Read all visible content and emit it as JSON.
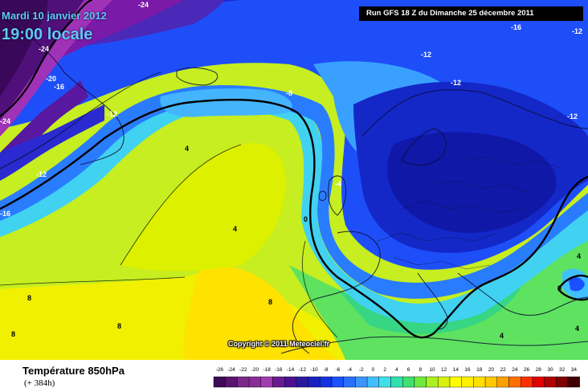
{
  "header": {
    "date": "Mardi 10 janvier 2012",
    "time": "19:00 locale",
    "run": "Run GFS 18 Z du Dimanche 25 décembre 2011"
  },
  "copyright": "Copyright © 2011 Meteociel.fr",
  "legend": {
    "title": "Température 850hPa",
    "subtitle": "(+ 384h)",
    "ticks": [
      "-26",
      "-24",
      "-22",
      "-20",
      "-18",
      "-16",
      "-14",
      "-12",
      "-10",
      "-8",
      "-6",
      "-4",
      "-2",
      "0",
      "2",
      "4",
      "6",
      "8",
      "10",
      "12",
      "14",
      "16",
      "18",
      "20",
      "22",
      "24",
      "26",
      "28",
      "30",
      "32",
      "34"
    ],
    "colors": [
      "#3d0a55",
      "#5a1470",
      "#7a2a8a",
      "#8a2c98",
      "#a03cb0",
      "#6a1a90",
      "#4a1290",
      "#2a18a0",
      "#1a20c0",
      "#1432e0",
      "#1a50ff",
      "#2a70ff",
      "#3c96ff",
      "#40c0ff",
      "#40e0e8",
      "#30e0b0",
      "#40e070",
      "#70e840",
      "#a8f020",
      "#d8f010",
      "#ffff00",
      "#fff000",
      "#ffe000",
      "#ffc800",
      "#ffa000",
      "#ff7000",
      "#ff3000",
      "#e00000",
      "#b00000",
      "#800000",
      "#400000"
    ]
  },
  "contour_labels": [
    {
      "text": "-24"
    },
    {
      "text": "-24"
    },
    {
      "text": "-20"
    },
    {
      "text": "-16"
    },
    {
      "text": "-24"
    },
    {
      "text": "-12"
    },
    {
      "text": "-12"
    },
    {
      "text": "-16"
    },
    {
      "text": "-8"
    },
    {
      "text": "-12"
    },
    {
      "text": "-12"
    },
    {
      "text": "-12"
    },
    {
      "text": "-16"
    },
    {
      "text": "-12"
    },
    {
      "text": "4"
    },
    {
      "text": "4"
    },
    {
      "text": "0"
    },
    {
      "text": "-4"
    },
    {
      "text": "8"
    },
    {
      "text": "8"
    },
    {
      "text": "8"
    },
    {
      "text": "8"
    },
    {
      "text": "0"
    },
    {
      "text": "4"
    },
    {
      "text": "4"
    },
    {
      "text": "4"
    }
  ]
}
